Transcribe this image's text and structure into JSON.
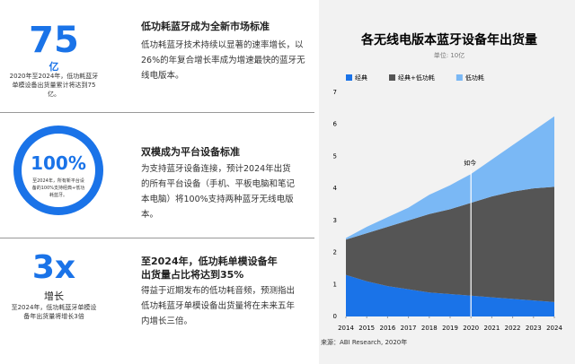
{
  "stats": [
    {
      "big": "75",
      "unit": "亿",
      "note": "2020年至2024年，低功耗蓝牙单模设备出货量累计将达到75亿。",
      "heading": "低功耗蓝牙成为全新市场标准",
      "body": "低功耗蓝牙技术持续以显著的速率增长，以26%的年复合增长率成为增速最快的蓝牙无线电版本。"
    },
    {
      "big": "100%",
      "note": "至2024年，所有新平台设备的100%支持经典+低功耗蓝牙。",
      "heading": "双模成为平台设备标准",
      "body": "为支持蓝牙设备连接，预计2024年出货的所有平台设备（手机、平板电脑和笔记本电脑）将100%支持两种蓝牙无线电版本。"
    },
    {
      "big": "3x",
      "unit": "增长",
      "note": "至2024年，低功耗蓝牙单模设备年出货量将增长3倍",
      "heading": "至2024年，低功耗单模设备年出货量占比将达到35%",
      "body": "得益于近期发布的低功耗音频，预测指出低功耗蓝牙单模设备出货量将在未来五年内增长三倍。"
    }
  ],
  "chart_data": {
    "type": "stacked_area",
    "title": "各无线电版本蓝牙设备年出货量",
    "subtitle": "单位: 10亿",
    "source": "来源：ABI Research, 2020年",
    "x": [
      2014,
      2015,
      2016,
      2017,
      2018,
      2019,
      2020,
      2021,
      2022,
      2023,
      2024
    ],
    "xlim": [
      2014,
      2024
    ],
    "xticks": [
      2014,
      2015,
      2016,
      2017,
      2018,
      2019,
      2020,
      2021,
      2022,
      2023,
      2024
    ],
    "ylim": [
      0,
      7
    ],
    "yticks": [
      0,
      1,
      2,
      3,
      4,
      5,
      6,
      7
    ],
    "annotation": {
      "text": "如今",
      "x": 2020
    },
    "series": [
      {
        "name": "经典",
        "color": "#1a73e8",
        "values": [
          1.3,
          1.1,
          0.95,
          0.85,
          0.75,
          0.7,
          0.65,
          0.6,
          0.55,
          0.5,
          0.45
        ]
      },
      {
        "name": "经典+低功耗",
        "color": "#555555",
        "values": [
          1.1,
          1.5,
          1.85,
          2.15,
          2.45,
          2.65,
          2.9,
          3.15,
          3.35,
          3.5,
          3.6
        ]
      },
      {
        "name": "低功耗",
        "color": "#7ab8f5",
        "values": [
          0.05,
          0.2,
          0.3,
          0.4,
          0.6,
          0.75,
          0.9,
          1.15,
          1.45,
          1.8,
          2.2
        ]
      }
    ]
  }
}
